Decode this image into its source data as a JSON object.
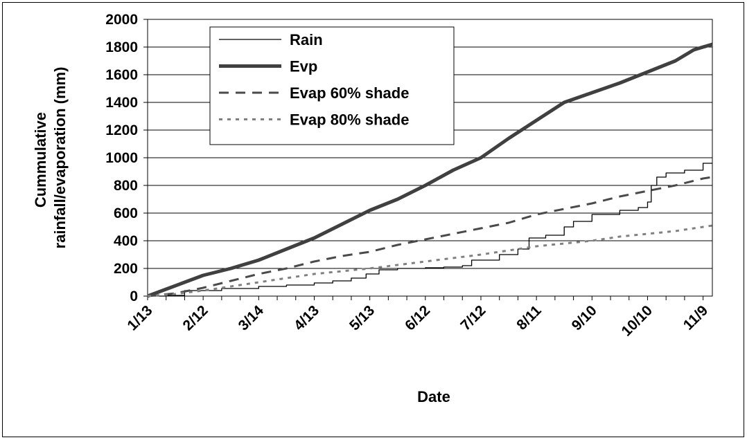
{
  "chart_data": {
    "type": "line",
    "xlabel": "Date",
    "ylabel": "Cummulative rainfall/evaporation (mm)",
    "ylim": [
      0,
      2000
    ],
    "yticks": [
      0,
      200,
      400,
      600,
      800,
      1000,
      1200,
      1400,
      1600,
      1800,
      2000
    ],
    "x_tick_labels": [
      "1/13",
      "2/12",
      "3/14",
      "4/13",
      "5/13",
      "6/12",
      "7/12",
      "8/11",
      "9/10",
      "10/10",
      "11/9"
    ],
    "x_tick_days": [
      0,
      30,
      60,
      90,
      120,
      150,
      180,
      210,
      240,
      270,
      300
    ],
    "x_range_days": [
      0,
      305
    ],
    "legend_position": "top-left",
    "grid": "horizontal",
    "series": [
      {
        "name": "Rain",
        "style": "thin-solid",
        "color": "#000000",
        "x": [
          0,
          10,
          20,
          40,
          60,
          75,
          90,
          100,
          110,
          118,
          125,
          135,
          150,
          160,
          170,
          175,
          190,
          200,
          206,
          215,
          225,
          230,
          240,
          255,
          265,
          270,
          272,
          275,
          280,
          290,
          300,
          305
        ],
        "y": [
          0,
          5,
          40,
          55,
          70,
          80,
          95,
          110,
          130,
          160,
          190,
          200,
          205,
          210,
          220,
          260,
          300,
          340,
          420,
          440,
          500,
          540,
          590,
          620,
          640,
          680,
          800,
          860,
          890,
          910,
          960,
          960
        ]
      },
      {
        "name": "Evp",
        "style": "thick-solid",
        "color": "#404040",
        "x": [
          0,
          10,
          20,
          30,
          45,
          60,
          75,
          90,
          105,
          120,
          135,
          150,
          165,
          180,
          195,
          210,
          225,
          240,
          255,
          270,
          285,
          295,
          305
        ],
        "y": [
          0,
          50,
          100,
          150,
          200,
          260,
          340,
          420,
          520,
          620,
          700,
          800,
          910,
          1000,
          1140,
          1270,
          1400,
          1470,
          1540,
          1620,
          1700,
          1780,
          1820
        ]
      },
      {
        "name": "Evap 60% shade",
        "style": "long-dash",
        "color": "#4a4a4a",
        "x": [
          0,
          15,
          30,
          45,
          60,
          75,
          90,
          105,
          120,
          135,
          150,
          165,
          180,
          195,
          210,
          225,
          240,
          255,
          270,
          285,
          300,
          305
        ],
        "y": [
          0,
          20,
          60,
          110,
          160,
          200,
          250,
          290,
          320,
          370,
          410,
          450,
          490,
          530,
          590,
          630,
          670,
          720,
          760,
          800,
          850,
          860
        ]
      },
      {
        "name": "Evap 80% shade",
        "style": "short-dash",
        "color": "#808080",
        "x": [
          0,
          15,
          30,
          45,
          60,
          75,
          90,
          105,
          120,
          135,
          150,
          165,
          180,
          195,
          210,
          225,
          240,
          255,
          270,
          285,
          300,
          305
        ],
        "y": [
          0,
          15,
          40,
          70,
          100,
          130,
          160,
          180,
          200,
          225,
          250,
          275,
          300,
          330,
          360,
          380,
          400,
          430,
          450,
          470,
          500,
          510
        ]
      }
    ]
  }
}
